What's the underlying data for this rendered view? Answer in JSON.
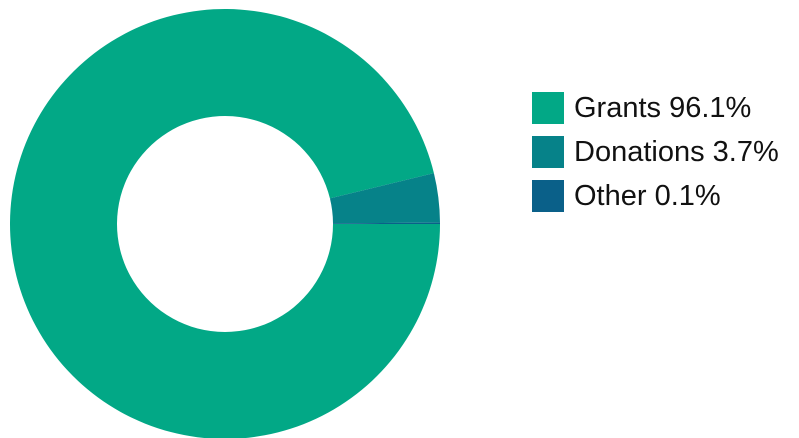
{
  "chart_data": {
    "type": "pie",
    "donut": true,
    "categories": [
      "Grants",
      "Donations",
      "Other"
    ],
    "values": [
      96.1,
      3.7,
      0.1
    ],
    "unit": "%",
    "colors": [
      "#02a886",
      "#068289",
      "#0a6089"
    ],
    "legend": {
      "position": "right",
      "labels": [
        "Grants 96.1%",
        "Donations 3.7%",
        "Other 0.1%"
      ]
    }
  }
}
